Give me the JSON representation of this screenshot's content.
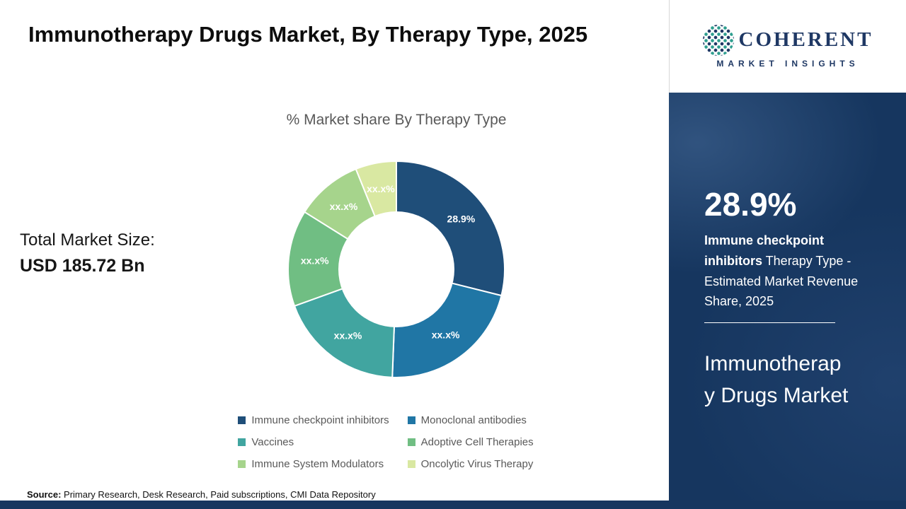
{
  "title": "Immunotherapy Drugs Market, By Therapy Type, 2025",
  "chart_title": "% Market share By Therapy Type",
  "total_market": {
    "label": "Total Market Size:",
    "value": "USD 185.72 Bn"
  },
  "source": {
    "label": "Source:",
    "text": " Primary Research, Desk Research, Paid subscriptions, CMI Data Repository"
  },
  "logo": {
    "brand": "COHERENT",
    "tagline": "MARKET INSIGHTS"
  },
  "side_panel": {
    "stat_value": "28.9%",
    "stat_bold": "Immune checkpoint inhibitors",
    "stat_rest": " Therapy Type - Estimated Market Revenue Share, 2025",
    "market_name": "Immunotherapy Drugs Market"
  },
  "chart_data": {
    "type": "pie",
    "donut": true,
    "title": "% Market share By Therapy Type",
    "legend_position": "bottom",
    "segments": [
      {
        "label": "Immune checkpoint inhibitors",
        "value": 28.9,
        "display": "28.9%",
        "color": "#1F4E79"
      },
      {
        "label": "Monoclonal antibodies",
        "value": 21.7,
        "display": "xx.x%",
        "color": "#2076A5"
      },
      {
        "label": "Vaccines",
        "value": 18.9,
        "display": "xx.x%",
        "color": "#41A5A0"
      },
      {
        "label": "Adoptive Cell Therapies",
        "value": 14.4,
        "display": "xx.x%",
        "color": "#70BE83"
      },
      {
        "label": "Immune System Modulators",
        "value": 10.0,
        "display": "xx.x%",
        "color": "#A6D48C"
      },
      {
        "label": "Oncolytic Virus Therapy",
        "value": 6.1,
        "display": "xx.x%",
        "color": "#D9E8A2"
      }
    ]
  },
  "colors": {
    "panel_navy": "#16365F",
    "brand_navy": "#1F3864",
    "text_gray": "#595959"
  }
}
